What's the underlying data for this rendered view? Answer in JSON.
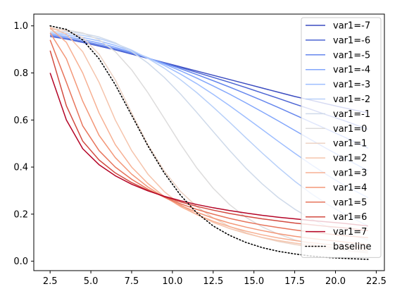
{
  "chart_data": {
    "type": "line",
    "title": "",
    "xlabel": "",
    "ylabel": "",
    "xlim": [
      1.5,
      23.0
    ],
    "ylim": [
      -0.04,
      1.05
    ],
    "x_ticks": [
      2.5,
      5.0,
      7.5,
      10.0,
      12.5,
      15.0,
      17.5,
      20.0,
      22.5
    ],
    "x_tick_labels": [
      "2.5",
      "5.0",
      "7.5",
      "10.0",
      "12.5",
      "15.0",
      "17.5",
      "20.0",
      "22.5"
    ],
    "y_ticks": [
      0.0,
      0.2,
      0.4,
      0.6,
      0.8,
      1.0
    ],
    "y_tick_labels": [
      "0.0",
      "0.2",
      "0.4",
      "0.6",
      "0.8",
      "1.0"
    ],
    "grid": false,
    "legend_placement": "right",
    "x": [
      2.5,
      3.5,
      4.5,
      5.5,
      6.5,
      7.5,
      8.5,
      9.5,
      10.5,
      11.5,
      12.5,
      13.5,
      14.5,
      15.5,
      16.5,
      17.5,
      18.5,
      19.5,
      20.5,
      22.0
    ],
    "series": [
      {
        "name": "var1=-7",
        "color": "#3b4cc0",
        "style": "solid",
        "values": [
          0.96,
          0.945,
          0.93,
          0.914,
          0.898,
          0.88,
          0.862,
          0.844,
          0.826,
          0.808,
          0.79,
          0.772,
          0.754,
          0.736,
          0.718,
          0.7,
          0.684,
          0.668,
          0.652,
          0.63
        ]
      },
      {
        "name": "var1=-6",
        "color": "#4a63d3",
        "style": "solid",
        "values": [
          0.955,
          0.944,
          0.93,
          0.915,
          0.899,
          0.881,
          0.862,
          0.843,
          0.823,
          0.802,
          0.781,
          0.76,
          0.738,
          0.715,
          0.692,
          0.668,
          0.645,
          0.621,
          0.598,
          0.56
        ]
      },
      {
        "name": "var1=-5",
        "color": "#6687ed",
        "style": "solid",
        "values": [
          0.958,
          0.948,
          0.935,
          0.92,
          0.903,
          0.884,
          0.863,
          0.841,
          0.818,
          0.793,
          0.767,
          0.74,
          0.712,
          0.683,
          0.653,
          0.622,
          0.591,
          0.56,
          0.529,
          0.48
        ]
      },
      {
        "name": "var1=-4",
        "color": "#82a6fb",
        "style": "solid",
        "values": [
          0.962,
          0.954,
          0.942,
          0.927,
          0.909,
          0.888,
          0.864,
          0.838,
          0.809,
          0.778,
          0.745,
          0.71,
          0.673,
          0.635,
          0.596,
          0.556,
          0.516,
          0.477,
          0.439,
          0.385
        ]
      },
      {
        "name": "var1=-3",
        "color": "#9ebeff",
        "style": "solid",
        "values": [
          0.966,
          0.961,
          0.951,
          0.936,
          0.917,
          0.893,
          0.865,
          0.832,
          0.795,
          0.754,
          0.709,
          0.661,
          0.611,
          0.56,
          0.509,
          0.459,
          0.411,
          0.366,
          0.324,
          0.27
        ]
      },
      {
        "name": "var1=-2",
        "color": "#b8d0f9",
        "style": "solid",
        "values": [
          0.97,
          0.968,
          0.96,
          0.946,
          0.925,
          0.897,
          0.862,
          0.82,
          0.771,
          0.716,
          0.655,
          0.591,
          0.525,
          0.46,
          0.398,
          0.34,
          0.288,
          0.242,
          0.202,
          0.15
        ]
      },
      {
        "name": "var1=-1",
        "color": "#cfdaea",
        "style": "solid",
        "values": [
          0.975,
          0.975,
          0.968,
          0.953,
          0.928,
          0.891,
          0.842,
          0.781,
          0.71,
          0.632,
          0.551,
          0.471,
          0.396,
          0.329,
          0.27,
          0.221,
          0.18,
          0.147,
          0.12,
          0.09
        ]
      },
      {
        "name": "var1=0",
        "color": "#dddcdc",
        "style": "solid",
        "values": [
          0.985,
          0.983,
          0.97,
          0.941,
          0.89,
          0.813,
          0.716,
          0.607,
          0.497,
          0.396,
          0.31,
          0.241,
          0.187,
          0.146,
          0.115,
          0.091,
          0.073,
          0.06,
          0.049,
          0.04
        ]
      },
      {
        "name": "var1=1",
        "color": "#ecd3c5",
        "style": "solid",
        "values": [
          0.99,
          0.98,
          0.95,
          0.88,
          0.77,
          0.63,
          0.495,
          0.383,
          0.296,
          0.232,
          0.184,
          0.148,
          0.121,
          0.1,
          0.084,
          0.071,
          0.061,
          0.052,
          0.046,
          0.035
        ]
      },
      {
        "name": "var1=2",
        "color": "#f5c4ac",
        "style": "solid",
        "values": [
          0.995,
          0.965,
          0.89,
          0.76,
          0.6,
          0.47,
          0.37,
          0.296,
          0.24,
          0.198,
          0.165,
          0.139,
          0.118,
          0.101,
          0.088,
          0.077,
          0.068,
          0.061,
          0.055,
          0.045
        ]
      },
      {
        "name": "var1=3",
        "color": "#f7b093",
        "style": "solid",
        "values": [
          0.99,
          0.93,
          0.8,
          0.63,
          0.495,
          0.4,
          0.33,
          0.275,
          0.232,
          0.198,
          0.17,
          0.147,
          0.128,
          0.112,
          0.099,
          0.088,
          0.079,
          0.071,
          0.065,
          0.055
        ]
      },
      {
        "name": "var1=4",
        "color": "#f39778",
        "style": "solid",
        "values": [
          0.97,
          0.86,
          0.68,
          0.535,
          0.44,
          0.37,
          0.315,
          0.272,
          0.237,
          0.208,
          0.183,
          0.162,
          0.145,
          0.13,
          0.117,
          0.106,
          0.097,
          0.089,
          0.082,
          0.07
        ]
      },
      {
        "name": "var1=5",
        "color": "#e7745b",
        "style": "solid",
        "values": [
          0.94,
          0.76,
          0.575,
          0.47,
          0.4,
          0.348,
          0.306,
          0.272,
          0.244,
          0.22,
          0.2,
          0.182,
          0.167,
          0.154,
          0.143,
          0.133,
          0.124,
          0.116,
          0.109,
          0.1
        ]
      },
      {
        "name": "var1=6",
        "color": "#d24b40",
        "style": "solid",
        "values": [
          0.895,
          0.66,
          0.51,
          0.43,
          0.375,
          0.334,
          0.301,
          0.274,
          0.252,
          0.233,
          0.217,
          0.203,
          0.191,
          0.18,
          0.171,
          0.162,
          0.155,
          0.148,
          0.142,
          0.13
        ]
      },
      {
        "name": "var1=7",
        "color": "#b40426",
        "style": "solid",
        "values": [
          0.8,
          0.6,
          0.478,
          0.41,
          0.363,
          0.327,
          0.299,
          0.276,
          0.257,
          0.241,
          0.227,
          0.215,
          0.205,
          0.195,
          0.187,
          0.18,
          0.173,
          0.167,
          0.161,
          0.15
        ]
      },
      {
        "name": "baseline",
        "color": "#000000",
        "style": "dotted",
        "values": [
          1.0,
          0.985,
          0.94,
          0.86,
          0.75,
          0.62,
          0.49,
          0.375,
          0.28,
          0.205,
          0.15,
          0.11,
          0.08,
          0.058,
          0.042,
          0.031,
          0.022,
          0.016,
          0.012,
          0.008
        ]
      }
    ]
  }
}
